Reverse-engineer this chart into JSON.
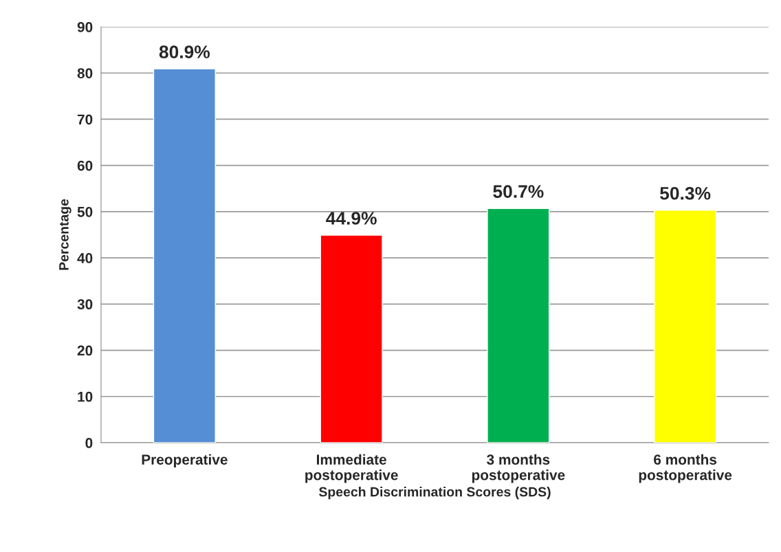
{
  "chart_data": {
    "type": "bar",
    "xlabel": "Speech Discrimination Scores (SDS)",
    "ylabel": "Percentage",
    "categories": [
      "Preoperative",
      "Immediate\npostoperative",
      "3 months\npostoperative",
      "6 months\npostoperative"
    ],
    "values": [
      80.9,
      44.9,
      50.7,
      50.3
    ],
    "colors": [
      "#558ed5",
      "#ff0000",
      "#00b050",
      "#ffff00"
    ],
    "value_labels": [
      "80.9%",
      "44.9%",
      "50.7%",
      "50.3%"
    ],
    "ylim": [
      0,
      90
    ],
    "yticks": [
      0,
      10,
      20,
      30,
      40,
      50,
      60,
      70,
      80,
      90
    ],
    "grid": "y",
    "legend": false
  }
}
